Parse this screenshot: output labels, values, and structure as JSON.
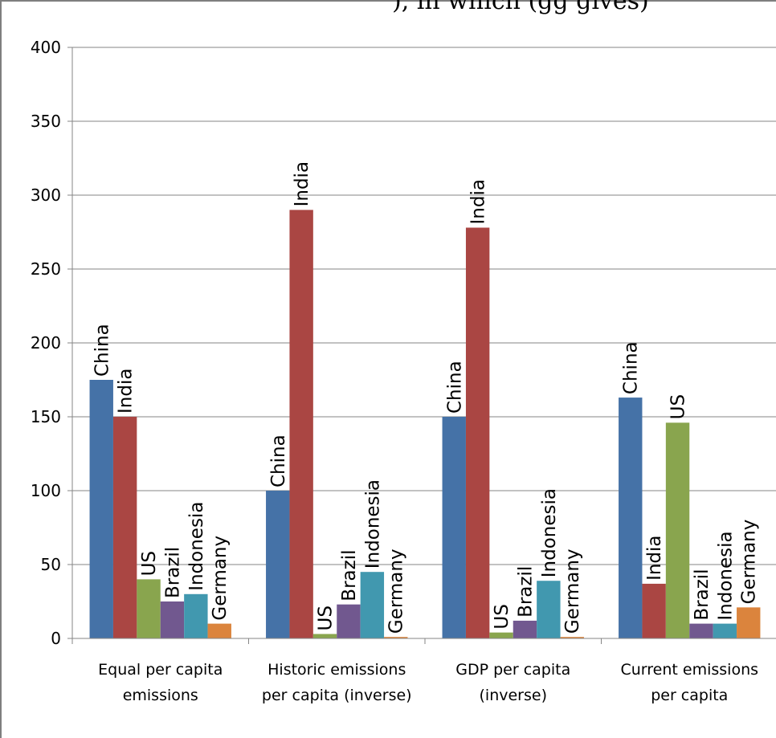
{
  "caption": "), in which (gg gives)",
  "chart_data": {
    "type": "bar",
    "categories": [
      [
        "Equal per capita",
        "emissions"
      ],
      [
        "Historic emissions",
        "per capita (inverse)"
      ],
      [
        "GDP per capita",
        "(inverse)"
      ],
      [
        "Current emissions",
        "per capita"
      ]
    ],
    "series": [
      {
        "name": "China",
        "color": "#4572A7",
        "values": [
          175,
          100,
          150,
          163
        ]
      },
      {
        "name": "India",
        "color": "#AA4643",
        "values": [
          150,
          290,
          278,
          37
        ]
      },
      {
        "name": "US",
        "color": "#89A54E",
        "values": [
          40,
          3,
          4,
          146
        ]
      },
      {
        "name": "Brazil",
        "color": "#71588F",
        "values": [
          25,
          23,
          12,
          10
        ]
      },
      {
        "name": "Indonesia",
        "color": "#4198AF",
        "values": [
          30,
          45,
          39,
          10
        ]
      },
      {
        "name": "Germany",
        "color": "#DB843D",
        "values": [
          10,
          1,
          1,
          21
        ]
      }
    ],
    "y_ticks": [
      0,
      50,
      100,
      150,
      200,
      250,
      300,
      350,
      400
    ],
    "ylim": [
      0,
      400
    ],
    "grid": true,
    "legend": "none",
    "bar_labels": "series name above each bar (rotated)"
  }
}
